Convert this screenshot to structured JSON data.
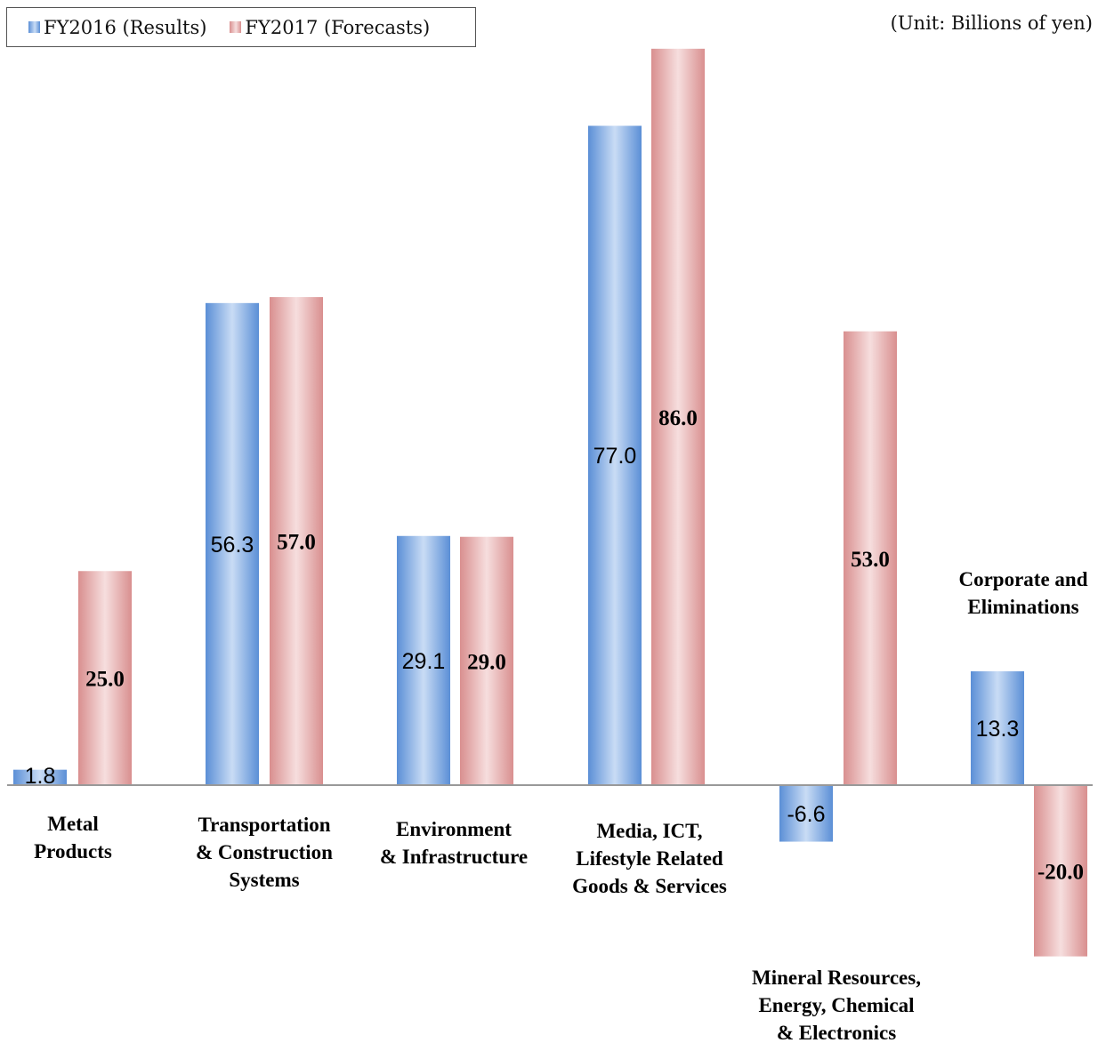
{
  "legend": {
    "series1": "FY2016 (Results)",
    "series2": "FY2017 (Forecasts)"
  },
  "unit_label": "(Unit: Billions of yen)",
  "colors": {
    "series1": "#5b8fd6",
    "series2": "#d98f8f",
    "axis": "#999999"
  },
  "chart_data": {
    "type": "bar",
    "categories": [
      [
        "Metal",
        "Products"
      ],
      [
        "Transportation",
        "& Construction",
        "Systems"
      ],
      [
        "Environment",
        "& Infrastructure"
      ],
      [
        "Media, ICT,",
        "Lifestyle Related",
        "Goods & Services"
      ],
      [
        "Mineral Resources,",
        "Energy, Chemical",
        "& Electronics"
      ],
      [
        "Corporate and",
        "Eliminations"
      ]
    ],
    "series": [
      {
        "name": "FY2016 (Results)",
        "values": [
          1.8,
          56.3,
          29.1,
          77.0,
          -6.6,
          13.3
        ],
        "labels": [
          "1.8",
          "56.3",
          "29.1",
          "77.0",
          "-6.6",
          "13.3"
        ]
      },
      {
        "name": "FY2017 (Forecasts)",
        "values": [
          25.0,
          57.0,
          29.0,
          86.0,
          53.0,
          -20.0
        ],
        "labels": [
          "25.0",
          "57.0",
          "29.0",
          "86.0",
          "53.0",
          "-20.0"
        ]
      }
    ],
    "ylim": [
      -20,
      86
    ],
    "unit": "Billions of yen",
    "grid": false,
    "legend_position": "top-left"
  }
}
